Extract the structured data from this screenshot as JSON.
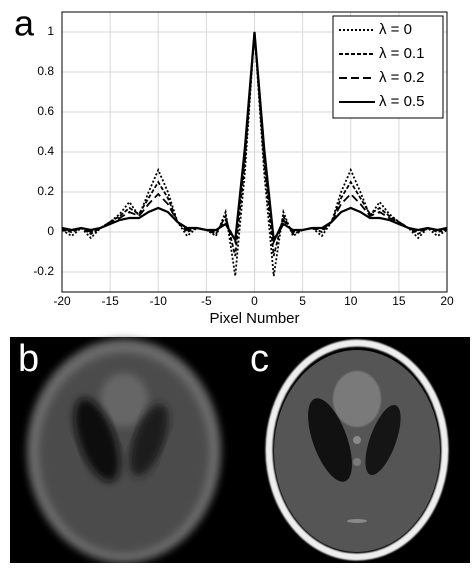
{
  "chart_data": {
    "type": "line",
    "x": [
      -20,
      -19,
      -18,
      -17,
      -16,
      -15,
      -14,
      -13,
      -12,
      -11,
      -10,
      -9,
      -8,
      -7,
      -6,
      -5,
      -4,
      -3,
      -2,
      -1,
      0,
      1,
      2,
      3,
      4,
      5,
      6,
      7,
      8,
      9,
      10,
      11,
      12,
      13,
      14,
      15,
      16,
      17,
      18,
      19,
      20
    ],
    "series": [
      {
        "name": "λ = 0",
        "color": "#000000",
        "dash": "2 2",
        "values": [
          0.01,
          -0.02,
          0.02,
          -0.03,
          0.02,
          0.05,
          0.09,
          0.15,
          0.08,
          0.2,
          0.31,
          0.2,
          0.05,
          -0.02,
          0.02,
          0.01,
          -0.02,
          0.1,
          -0.22,
          0.3,
          1,
          0.3,
          -0.22,
          0.1,
          -0.02,
          0.01,
          0.02,
          -0.02,
          0.05,
          0.2,
          0.31,
          0.2,
          0.08,
          0.15,
          0.09,
          0.05,
          0.02,
          -0.03,
          0.02,
          -0.02,
          0.01
        ]
      },
      {
        "name": "λ = 0.1",
        "color": "#000000",
        "dash": "4 2",
        "values": [
          0.01,
          0,
          0.02,
          -0.01,
          0.02,
          0.05,
          0.08,
          0.12,
          0.09,
          0.17,
          0.25,
          0.17,
          0.05,
          0,
          0.02,
          0.01,
          -0.01,
          0.08,
          -0.12,
          0.35,
          1,
          0.35,
          -0.12,
          0.08,
          -0.01,
          0.01,
          0.02,
          0,
          0.05,
          0.17,
          0.25,
          0.17,
          0.09,
          0.12,
          0.08,
          0.05,
          0.02,
          -0.01,
          0.02,
          0,
          0.01
        ]
      },
      {
        "name": "λ = 0.2",
        "color": "#000000",
        "dash": "8 4",
        "values": [
          0.01,
          0.01,
          0.02,
          0,
          0.02,
          0.05,
          0.07,
          0.1,
          0.08,
          0.14,
          0.19,
          0.14,
          0.05,
          0.01,
          0.02,
          0.01,
          0,
          0.06,
          -0.05,
          0.38,
          1,
          0.38,
          -0.05,
          0.06,
          0,
          0.01,
          0.02,
          0.01,
          0.05,
          0.14,
          0.19,
          0.14,
          0.08,
          0.1,
          0.07,
          0.05,
          0.02,
          0,
          0.02,
          0.01,
          0.01
        ]
      },
      {
        "name": "λ = 0.5",
        "color": "#000000",
        "dash": "none",
        "values": [
          0.02,
          0.01,
          0.02,
          0.01,
          0.02,
          0.04,
          0.06,
          0.07,
          0.07,
          0.1,
          0.12,
          0.1,
          0.05,
          0.02,
          0.02,
          0.01,
          0.01,
          0.04,
          -0.04,
          0.42,
          1,
          0.42,
          -0.04,
          0.04,
          0.01,
          0.01,
          0.02,
          0.02,
          0.05,
          0.1,
          0.12,
          0.1,
          0.07,
          0.07,
          0.06,
          0.04,
          0.02,
          0.01,
          0.02,
          0.01,
          0.02
        ]
      }
    ],
    "x_label": "Pixel Number",
    "xlim": [
      -20,
      20
    ],
    "xticks": [
      -20,
      -15,
      -10,
      -5,
      0,
      5,
      10,
      15,
      20
    ],
    "ylim": [
      -0.3,
      1.1
    ],
    "yticks": [
      -0.2,
      0,
      0.2,
      0.4,
      0.6,
      0.8,
      1
    ],
    "grid": true,
    "legend": "top-right"
  },
  "panel_labels": {
    "a": "a",
    "b": "b",
    "c": "c"
  }
}
